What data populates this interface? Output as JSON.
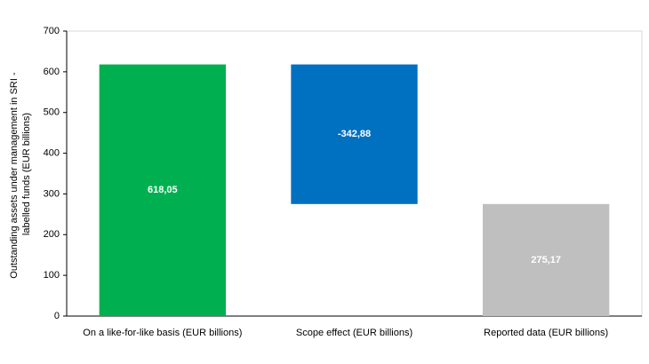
{
  "chart_data": {
    "type": "waterfall",
    "ylabel_lines": [
      "Outstanding assets under management in SRI -",
      "labelled funds (EUR billions)"
    ],
    "categories": [
      "On a like-for-like basis (EUR billions)",
      "Scope effect (EUR billions)",
      "Reported data (EUR billions)"
    ],
    "values": [
      618.05,
      -342.88,
      275.17
    ],
    "value_labels": [
      "618,05",
      "-342,88",
      "275,17"
    ],
    "measure": [
      "absolute",
      "relative",
      "total"
    ],
    "colors": [
      "#00b050",
      "#0070c0",
      "#bfbfbf"
    ],
    "ylim": [
      0,
      700
    ],
    "yticks": [
      0,
      100,
      200,
      300,
      400,
      500,
      600,
      700
    ],
    "grid": false
  }
}
